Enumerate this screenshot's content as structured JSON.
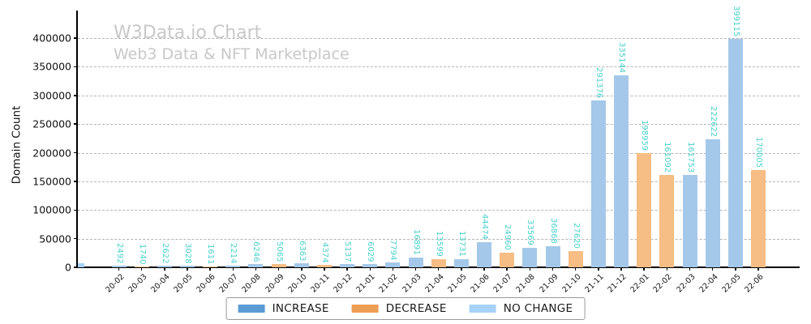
{
  "title": "W3Data.io Chart",
  "subtitle": "Web3 Data & NFT Marketplace",
  "colors": {
    "bar_increase": "#a4c8e9",
    "bar_decrease": "#f6bd84",
    "bar_nochange": "#a6d2f8",
    "legend_increase": "#5b9bd5",
    "legend_decrease": "#ee9d55",
    "legend_nochange": "#a6d2f8",
    "value_label": "#48d1cc",
    "grid": "#b6b6b6",
    "title_text": "#c8c8c8",
    "axis_text": "#111111"
  },
  "legend": [
    {
      "label": "INCREASE",
      "type": "increase"
    },
    {
      "label": "DECREASE",
      "type": "decrease"
    },
    {
      "label": "NO CHANGE",
      "type": "nochange"
    }
  ],
  "chart_data": {
    "type": "bar",
    "title": "W3Data.io Chart",
    "subtitle": "Web3 Data & NFT Marketplace",
    "xlabel": "",
    "ylabel": "Domain Count",
    "categories": [
      "20-02",
      "20-03",
      "20-04",
      "20-05",
      "20-06",
      "20-07",
      "20-08",
      "20-09",
      "20-10",
      "20-11",
      "20-12",
      "21-01",
      "21-02",
      "21-03",
      "21-04",
      "21-05",
      "21-06",
      "21-07",
      "21-08",
      "21-09",
      "21-10",
      "21-11",
      "21-12",
      "22-01",
      "22-02",
      "22-03",
      "22-04",
      "22-05",
      "22-06"
    ],
    "values": [
      2492,
      1740,
      2622,
      3028,
      1611,
      2214,
      6246,
      5065,
      6363,
      4374,
      5137,
      6029,
      7794,
      16891,
      13599,
      13731,
      44474,
      24960,
      33569,
      36868,
      27620,
      291376,
      335144,
      198959,
      161092,
      161753,
      222622,
      399115,
      170005
    ],
    "bar_types": [
      "increase",
      "decrease",
      "increase",
      "increase",
      "decrease",
      "increase",
      "increase",
      "decrease",
      "increase",
      "decrease",
      "increase",
      "increase",
      "increase",
      "increase",
      "decrease",
      "increase",
      "increase",
      "decrease",
      "increase",
      "increase",
      "decrease",
      "increase",
      "increase",
      "decrease",
      "decrease",
      "increase",
      "increase",
      "increase",
      "decrease"
    ],
    "ylim": [
      0,
      445000
    ],
    "yticks": [
      0,
      50000,
      100000,
      150000,
      200000,
      250000,
      300000,
      350000,
      400000
    ],
    "grid": "horizontal dashed",
    "legend_position": "bottom center",
    "value_labels": {
      "rotation_deg": 90,
      "color": "#48d1cc"
    },
    "leading_partial_bar": {
      "note": "small unlabeled light-blue bar flush against y-axis at baseline",
      "approx_height_units": 6000
    }
  }
}
